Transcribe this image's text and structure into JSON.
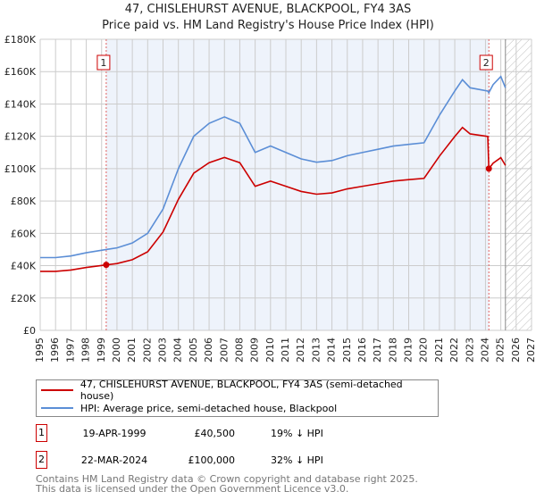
{
  "title": "47, CHISLEHURST AVENUE, BLACKPOOL, FY4 3AS",
  "subtitle": "Price paid vs. HM Land Registry's House Price Index (HPI)",
  "chart_data": {
    "type": "line",
    "xlim": [
      1995,
      2027
    ],
    "ylim": [
      0,
      180000
    ],
    "x_ticks": [
      "1995",
      "1996",
      "1997",
      "1998",
      "1999",
      "2000",
      "2001",
      "2002",
      "2003",
      "2004",
      "2005",
      "2006",
      "2007",
      "2008",
      "2009",
      "2010",
      "2011",
      "2012",
      "2013",
      "2014",
      "2015",
      "2016",
      "2017",
      "2018",
      "2019",
      "2020",
      "2021",
      "2022",
      "2023",
      "2024",
      "2025",
      "2026",
      "2027"
    ],
    "y_ticks": [
      "£0",
      "£20K",
      "£40K",
      "£60K",
      "£80K",
      "£100K",
      "£120K",
      "£140K",
      "£160K",
      "£180K"
    ],
    "series": [
      {
        "name": "47, CHISLEHURST AVENUE, BLACKPOOL, FY4 3AS (semi-detached house)",
        "color": "#cc0000",
        "x": [
          1995,
          1996,
          1997,
          1998,
          1999.3,
          2000,
          2001,
          2002,
          2003,
          2004,
          2005,
          2006,
          2007,
          2008,
          2009,
          2010,
          2011,
          2012,
          2013,
          2014,
          2015,
          2016,
          2017,
          2018,
          2019,
          2020,
          2021,
          2022,
          2022.5,
          2023,
          2024.15,
          2024.22,
          2024.5,
          2025,
          2025.3
        ],
        "values": [
          36500,
          36500,
          37300,
          38900,
          40500,
          41300,
          43700,
          48600,
          60800,
          81000,
          97200,
          103700,
          106900,
          103700,
          89100,
          92300,
          89100,
          85900,
          84200,
          85000,
          87500,
          89100,
          90700,
          92300,
          93200,
          94000,
          107700,
          119900,
          125500,
          121500,
          119900,
          100000,
          103400,
          106800,
          102000
        ]
      },
      {
        "name": "HPI: Average price, semi-detached house, Blackpool",
        "color": "#5b8ed6",
        "x": [
          1995,
          1996,
          1997,
          1998,
          1999.3,
          2000,
          2001,
          2002,
          2003,
          2004,
          2005,
          2006,
          2007,
          2008,
          2009,
          2010,
          2011,
          2012,
          2013,
          2014,
          2015,
          2016,
          2017,
          2018,
          2019,
          2020,
          2021,
          2022,
          2022.5,
          2023,
          2024.15,
          2024.22,
          2024.5,
          2025,
          2025.3
        ],
        "values": [
          45000,
          45000,
          46000,
          48000,
          50000,
          51000,
          54000,
          60000,
          75000,
          100000,
          120000,
          128000,
          132000,
          128000,
          110000,
          114000,
          110000,
          106000,
          104000,
          105000,
          108000,
          110000,
          112000,
          114000,
          115000,
          116000,
          133000,
          148000,
          155000,
          150000,
          148000,
          147000,
          152000,
          157000,
          150000
        ]
      }
    ],
    "sales": [
      {
        "label": "1",
        "x": 1999.3,
        "value": 40500
      },
      {
        "label": "2",
        "x": 2024.22,
        "value": 100000
      }
    ],
    "forecast_from": 2025.3
  },
  "legend": {
    "red": "47, CHISLEHURST AVENUE, BLACKPOOL, FY4 3AS (semi-detached house)",
    "blue": "HPI: Average price, semi-detached house, Blackpool"
  },
  "sales_table": [
    {
      "num": "1",
      "date": "19-APR-1999",
      "price": "£40,500",
      "hpi": "19% ↓ HPI"
    },
    {
      "num": "2",
      "date": "22-MAR-2024",
      "price": "£100,000",
      "hpi": "32% ↓ HPI"
    }
  ],
  "footer": [
    "Contains HM Land Registry data © Crown copyright and database right 2025.",
    "This data is licensed under the Open Government Licence v3.0."
  ]
}
